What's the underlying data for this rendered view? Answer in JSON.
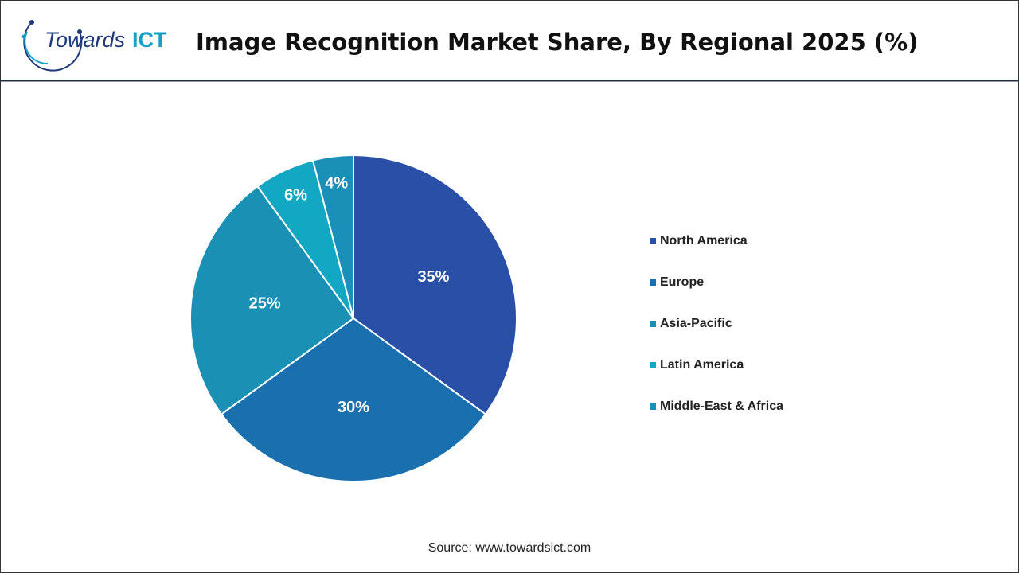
{
  "logo": [
    "Towards",
    "ICT"
  ],
  "chart_data": {
    "type": "pie",
    "title": "Image Recognition Market Share, By Regional 2025 (%)",
    "categories": [
      "North America",
      "Europe",
      "Asia-Pacific",
      "Latin America",
      "Middle-East & Africa"
    ],
    "values": [
      35,
      30,
      25,
      6,
      4
    ],
    "value_labels": [
      "35%",
      "30%",
      "25%",
      "6%",
      "4%"
    ],
    "colors": [
      "#2a4fa6",
      "#1a70ae",
      "#1990b4",
      "#12a8c4",
      "#1a8fb8"
    ],
    "legend": "right",
    "source": "Source: www.towardsict.com"
  }
}
